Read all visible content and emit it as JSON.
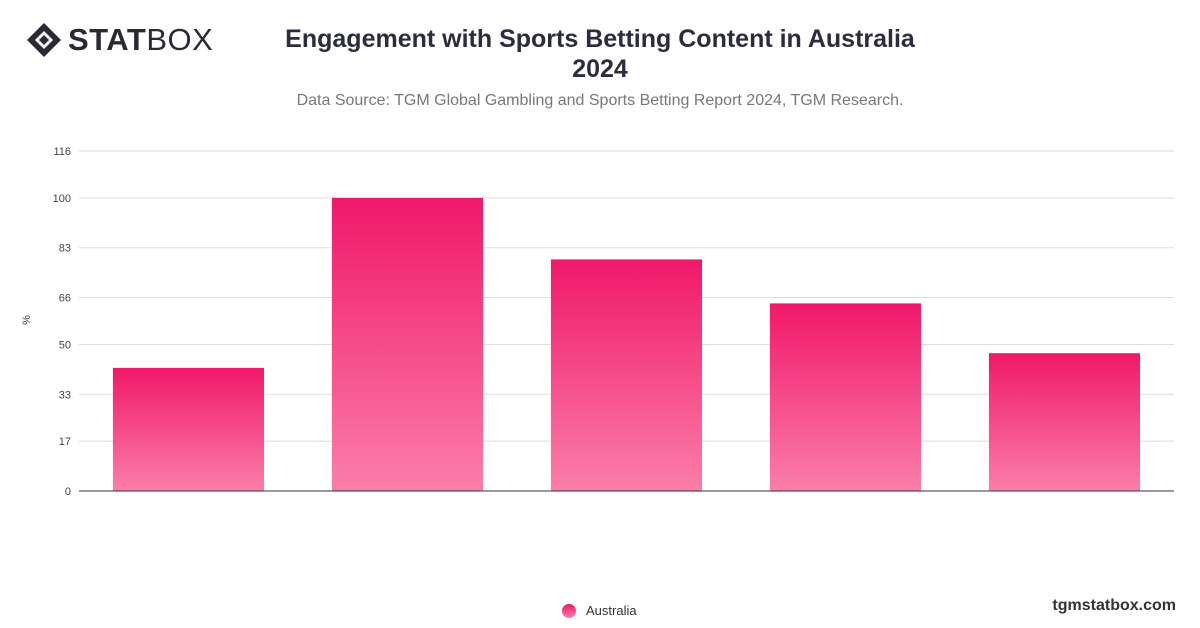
{
  "brand": {
    "logo_stat": "STAT",
    "logo_box": "BOX",
    "icon": "statbox-diamond-icon",
    "footer": "tgmstatbox.com"
  },
  "header": {
    "title_line1": "Engagement with Sports Betting Content in Australia",
    "title_line2": "2024",
    "subtitle": "Data Source: TGM Global Gambling and Sports Betting Report 2024, TGM Research."
  },
  "colors": {
    "bar_top": "#f0186a",
    "bar_bottom": "#fb7ea9",
    "grid": "#dddddd",
    "axis": "#333333"
  },
  "chart_data": {
    "type": "bar",
    "title": "Engagement with Sports Betting Content in Australia 2024",
    "xlabel": "",
    "ylabel": "%",
    "ylim": [
      0,
      116
    ],
    "yticks": [
      0,
      17,
      33,
      50,
      66,
      83,
      100,
      116
    ],
    "categories": [
      "",
      "",
      "",
      "",
      ""
    ],
    "grid": true,
    "legend_position": "bottom-center",
    "series": [
      {
        "name": "Australia",
        "values": [
          42,
          100,
          79,
          64,
          47
        ]
      }
    ]
  }
}
